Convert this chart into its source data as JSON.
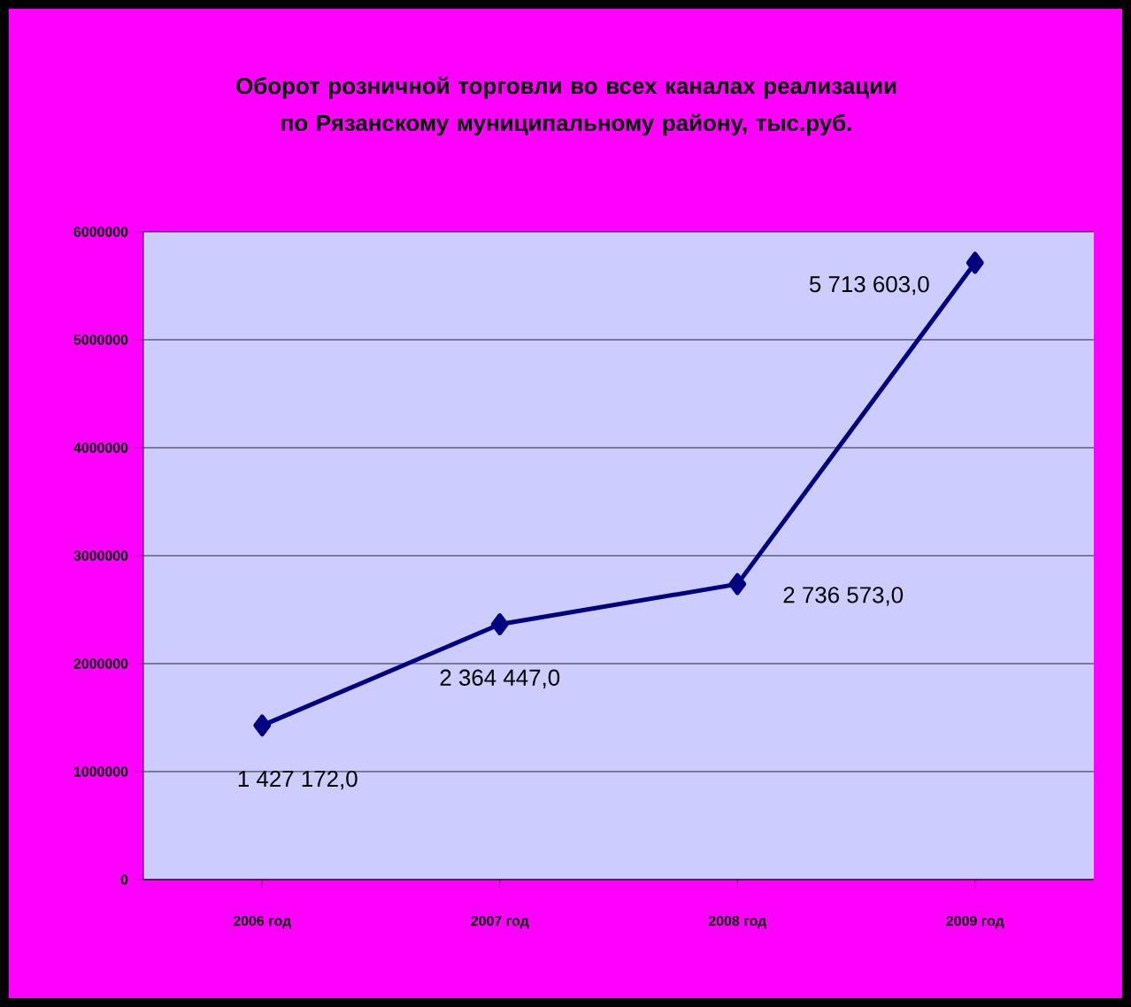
{
  "chart_data": {
    "type": "line",
    "title": "Оборот розничной торговли во всех каналах реализации\nпо Рязанскому муниципальному району, тыс.руб.",
    "categories": [
      "2006 год",
      "2007 год",
      "2008 год",
      "2009 год"
    ],
    "series": [
      {
        "color": "#000080",
        "values": [
          1427172,
          2364447,
          2736573,
          5713603
        ],
        "value_labels": [
          "1 427 172,0",
          "2 364 447,0",
          "2 736 573,0",
          "5 713 603,0"
        ]
      }
    ],
    "ylim": [
      0,
      6000000
    ],
    "yticks": [
      0,
      1000000,
      2000000,
      3000000,
      4000000,
      5000000,
      6000000
    ],
    "grid": "y",
    "marker": "diamond",
    "line_style": "solid"
  }
}
